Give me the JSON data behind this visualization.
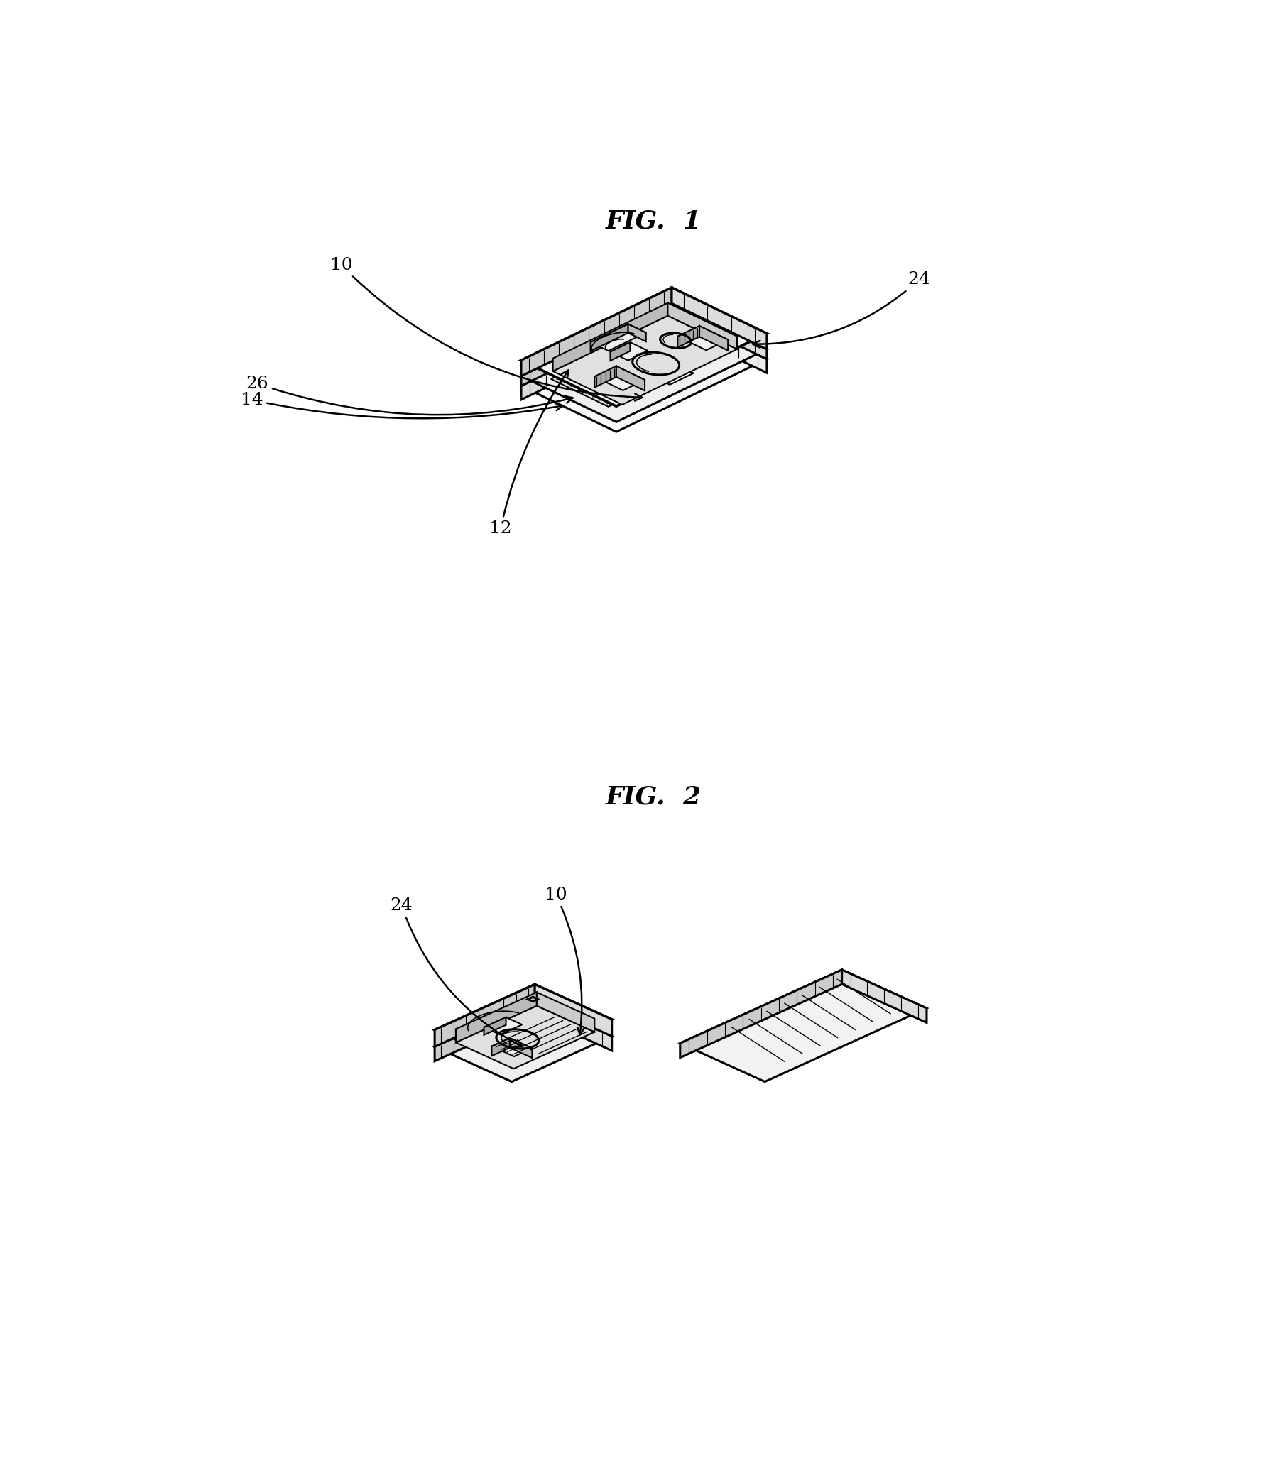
{
  "title1": "FIG.  1",
  "title2": "FIG.  2",
  "title_fontsize": 26,
  "label_fontsize": 18,
  "bg_color": "#ffffff",
  "line_color": "#000000",
  "line_width": 2.2,
  "fig_width": 17.97,
  "fig_height": 20.86
}
